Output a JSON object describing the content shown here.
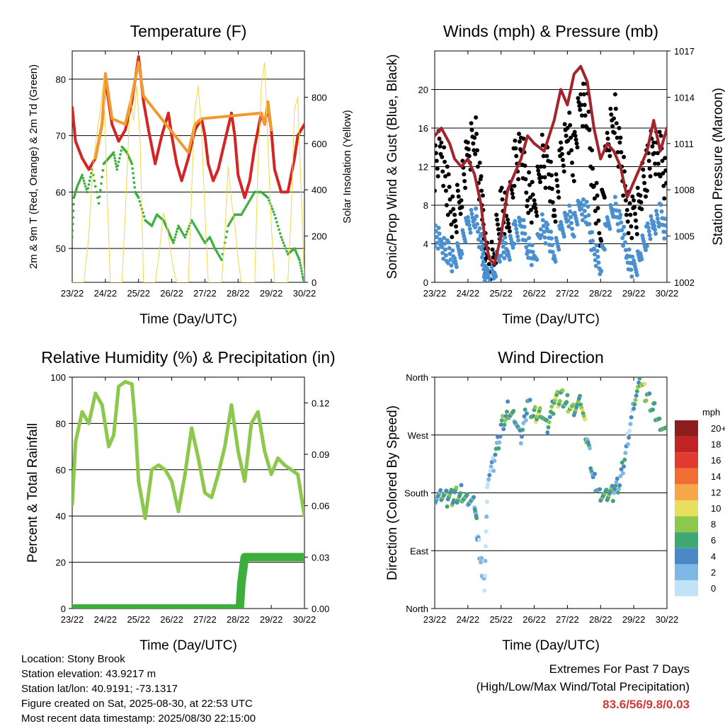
{
  "station": {
    "location": "Location: Stony Brook",
    "elevation": "Station elevation: 43.9217 m",
    "latlon": "Station lat/lon: 40.9191; -73.1317",
    "created": "Figure created on Sat, 2025-08-30, at 22:53 UTC",
    "recent": "Most recent data timestamp: 2025/08/30 22:15:00"
  },
  "extremes": {
    "heading": "Extremes For Past 7 Days",
    "subheading": "(High/Low/Max Wind/Total Precipitation)",
    "values": "83.6/56/9.8/0.03",
    "color": "#d23a3a"
  },
  "chart_data": [
    {
      "type": "line",
      "title": "Temperature (F)",
      "xlabel": "Time (Day/UTC)",
      "ylabel": "2m & 9m T (Red, Orange) & 2m Td (Green)",
      "y2label": "Solar Insolation (Yellow)",
      "x_ticks": [
        "23/22",
        "24/22",
        "25/22",
        "26/22",
        "27/22",
        "28/22",
        "29/22",
        "30/22"
      ],
      "xlim": [
        0,
        7
      ],
      "ylim": [
        44,
        85
      ],
      "y_ticks": [
        50,
        60,
        70,
        80
      ],
      "y2lim": [
        0,
        1000
      ],
      "y2_ticks": [
        0,
        200,
        400,
        600,
        800
      ],
      "grid": "horizontal",
      "series": [
        {
          "color": "#d42424",
          "style": "line",
          "axis": "left",
          "x": [
            0,
            0.1,
            0.3,
            0.5,
            0.7,
            0.9,
            1.0,
            1.2,
            1.4,
            1.6,
            1.8,
            2.0,
            2.15,
            2.3,
            2.5,
            2.7,
            2.9,
            3.0,
            3.15,
            3.3,
            3.5,
            3.7,
            3.9,
            4.0,
            4.1,
            4.25,
            4.4,
            4.6,
            4.8,
            4.9,
            5.0,
            5.2,
            5.35,
            5.5,
            5.7,
            5.8,
            5.9,
            6.0,
            6.1,
            6.3,
            6.5,
            6.7,
            6.8,
            7.0
          ],
          "y": [
            75,
            69,
            66,
            64,
            66,
            72,
            80,
            72,
            69,
            71,
            76,
            84,
            76,
            71,
            65,
            70,
            74,
            70,
            65,
            62,
            66,
            71,
            73,
            70,
            65,
            62,
            64,
            69,
            74,
            70,
            63,
            59,
            62,
            68,
            74,
            72,
            75,
            71,
            64,
            60,
            60,
            66,
            70,
            72
          ]
        },
        {
          "color": "#f29a30",
          "style": "line",
          "axis": "left",
          "x": [
            0.7,
            0.9,
            1.0,
            1.2,
            1.6,
            1.8,
            2.0,
            2.15,
            3.5,
            3.7,
            3.9,
            5.7,
            5.8,
            5.9,
            6.0
          ],
          "y": [
            66,
            72,
            81,
            73,
            72,
            77,
            83,
            77,
            67,
            72,
            73,
            74,
            72,
            76,
            71
          ]
        },
        {
          "color": "#3cae3c",
          "style": "dots",
          "axis": "left",
          "x": [
            0,
            0.05,
            0.15,
            0.3,
            0.45,
            0.6,
            0.8,
            0.95,
            1.1,
            1.25,
            1.35,
            1.5,
            1.65,
            1.8,
            1.9,
            2.0,
            2.2,
            2.4,
            2.55,
            2.75,
            2.9,
            3.05,
            3.2,
            3.4,
            3.6,
            3.8,
            4.0,
            4.15,
            4.3,
            4.5,
            4.7,
            4.9,
            5.1,
            5.3,
            5.5,
            5.7,
            5.9,
            6.1,
            6.3,
            6.5,
            6.7,
            6.85,
            6.95,
            7.0
          ],
          "y": [
            52,
            59,
            61,
            63,
            60,
            64,
            58,
            65,
            66,
            67,
            64,
            68,
            67,
            65,
            60,
            59,
            55,
            54,
            56,
            55,
            53,
            51,
            54,
            52,
            55,
            53,
            51,
            52,
            50,
            48,
            54,
            56,
            56,
            58,
            60,
            60,
            59,
            56,
            52,
            49,
            50,
            48,
            45,
            44
          ]
        },
        {
          "color": "#f2d746",
          "style": "line",
          "axis": "right",
          "x": [
            0,
            0.35,
            0.5,
            0.62,
            0.75,
            0.85,
            0.95,
            1.05,
            1.15,
            1.5,
            1.6,
            1.75,
            1.85,
            1.95,
            2.05,
            2.15,
            2.5,
            2.6,
            2.75,
            2.85,
            2.95,
            3.05,
            3.15,
            3.5,
            3.6,
            3.7,
            3.8,
            3.9,
            4.0,
            4.1,
            4.5,
            4.6,
            4.7,
            4.8,
            4.9,
            5.0,
            5.1,
            5.5,
            5.6,
            5.7,
            5.8,
            5.9,
            6.0,
            6.1,
            6.5,
            6.6,
            6.7,
            6.8,
            6.9,
            7.0
          ],
          "y": [
            0,
            0,
            200,
            500,
            650,
            750,
            880,
            400,
            0,
            0,
            300,
            800,
            700,
            850,
            600,
            0,
            0,
            100,
            300,
            250,
            150,
            60,
            0,
            0,
            400,
            750,
            850,
            650,
            300,
            0,
            0,
            200,
            500,
            350,
            250,
            100,
            0,
            0,
            500,
            850,
            950,
            600,
            250,
            0,
            0,
            300,
            750,
            800,
            400,
            0
          ]
        }
      ]
    },
    {
      "type": "scatter",
      "title": "Winds (mph) & Pressure (mb)",
      "xlabel": "Time (Day/UTC)",
      "ylabel": "Sonic/Prop Wind & Gust (Blue, Black)",
      "y2label": "Station Pressure (Maroon)",
      "x_ticks": [
        "23/22",
        "24/22",
        "25/22",
        "26/22",
        "27/22",
        "28/22",
        "29/22",
        "30/22"
      ],
      "xlim": [
        0,
        7
      ],
      "ylim": [
        0,
        24
      ],
      "y_ticks": [
        0,
        4,
        8,
        12,
        16,
        20
      ],
      "y2lim": [
        1002,
        1017
      ],
      "y2_ticks": [
        1002,
        1005,
        1008,
        1011,
        1014,
        1017
      ],
      "grid": "horizontal",
      "series": [
        {
          "color": "#000000",
          "style": "dots",
          "axis": "left",
          "x": [
            0,
            0.2,
            0.4,
            0.6,
            0.8,
            1.0,
            1.2,
            1.4,
            1.5,
            1.6,
            1.8,
            2.0,
            2.2,
            2.4,
            2.6,
            2.8,
            3.0,
            3.2,
            3.4,
            3.6,
            3.8,
            4.0,
            4.2,
            4.4,
            4.6,
            4.8,
            5.0,
            5.2,
            5.4,
            5.6,
            5.8,
            6.0,
            6.2,
            6.4,
            6.6,
            6.8,
            7.0
          ],
          "y": [
            12,
            14,
            9,
            6,
            10,
            13,
            16,
            9,
            4,
            1,
            3,
            8,
            6,
            12,
            14,
            10,
            7,
            13,
            12,
            8,
            12,
            16,
            13,
            19,
            18,
            9,
            6,
            14,
            18,
            13,
            8,
            6,
            9,
            12,
            14,
            13,
            10
          ]
        },
        {
          "color": "#4a90d0",
          "style": "dots",
          "axis": "left",
          "x": [
            0,
            0.2,
            0.4,
            0.6,
            0.8,
            1.0,
            1.2,
            1.4,
            1.5,
            1.6,
            1.8,
            2.0,
            2.2,
            2.4,
            2.6,
            2.8,
            3.0,
            3.2,
            3.4,
            3.6,
            3.8,
            4.0,
            4.2,
            4.4,
            4.6,
            4.8,
            5.0,
            5.2,
            5.4,
            5.6,
            5.8,
            6.0,
            6.2,
            6.4,
            6.6,
            6.8,
            7.0
          ],
          "y": [
            5,
            4,
            3,
            2,
            4,
            6,
            7,
            4,
            1,
            0,
            1,
            4,
            3,
            5,
            6,
            4,
            2,
            6,
            5,
            3,
            5,
            7,
            6,
            8,
            7,
            3,
            2,
            6,
            8,
            6,
            3,
            1,
            3,
            5,
            6,
            7,
            5
          ]
        },
        {
          "color": "#a3242c",
          "style": "line",
          "axis": "right",
          "x": [
            0,
            0.2,
            0.45,
            0.6,
            0.8,
            1.0,
            1.2,
            1.4,
            1.5,
            1.65,
            1.8,
            2.0,
            2.2,
            2.4,
            2.6,
            2.8,
            3.0,
            3.3,
            3.6,
            3.8,
            3.9,
            4.0,
            4.2,
            4.4,
            4.6,
            4.8,
            5.0,
            5.2,
            5.4,
            5.6,
            5.8,
            6.0,
            6.2,
            6.4,
            6.6,
            6.8,
            7.0
          ],
          "y": [
            1011.5,
            1012,
            1011,
            1010,
            1009.5,
            1010,
            1009,
            1007,
            1005,
            1003.5,
            1003.2,
            1005,
            1008,
            1009,
            1010,
            1011.5,
            1011,
            1010.5,
            1012.5,
            1014.5,
            1014,
            1013.5,
            1015.5,
            1016,
            1015,
            1012,
            1010,
            1011,
            1010.5,
            1009.5,
            1007.5,
            1008.5,
            1009.5,
            1010.5,
            1012.5,
            1010.5,
            1012
          ]
        }
      ]
    },
    {
      "type": "line",
      "title": "Relative Humidity (%) & Precipitation (in)",
      "xlabel": "Time (Day/UTC)",
      "ylabel": "Percent & Total Rainfall",
      "x_ticks": [
        "23/22",
        "24/22",
        "25/22",
        "26/22",
        "27/22",
        "28/22",
        "29/22",
        "30/22"
      ],
      "xlim": [
        0,
        7
      ],
      "ylim": [
        0,
        100
      ],
      "y_ticks": [
        0,
        20,
        40,
        60,
        80,
        100
      ],
      "y2lim": [
        0,
        0.135
      ],
      "y2_ticks": [
        "0.00",
        "0.03",
        "0.06",
        "0.09",
        "0.12"
      ],
      "grid": "horizontal",
      "series": [
        {
          "color": "#8cc84b",
          "style": "line",
          "axis": "left",
          "x": [
            0,
            0.1,
            0.3,
            0.5,
            0.7,
            0.9,
            1.1,
            1.25,
            1.4,
            1.6,
            1.8,
            1.9,
            2.0,
            2.2,
            2.4,
            2.6,
            2.8,
            3.0,
            3.2,
            3.4,
            3.6,
            3.8,
            4.0,
            4.2,
            4.4,
            4.6,
            4.8,
            5.0,
            5.2,
            5.4,
            5.6,
            5.8,
            6.0,
            6.2,
            6.4,
            6.6,
            6.8,
            7.0
          ],
          "y": [
            45,
            72,
            85,
            80,
            93,
            88,
            70,
            75,
            96,
            98,
            97,
            80,
            55,
            39,
            60,
            62,
            60,
            55,
            42,
            58,
            78,
            65,
            50,
            48,
            58,
            70,
            88,
            68,
            55,
            80,
            85,
            68,
            58,
            65,
            62,
            60,
            58,
            40
          ]
        },
        {
          "color": "#3cae3c",
          "style": "thick",
          "axis": "right",
          "x": [
            0,
            1,
            2,
            3,
            4,
            5,
            5.05,
            5.1,
            5.2,
            6,
            7
          ],
          "y": [
            0,
            0,
            0,
            0,
            0,
            0,
            0,
            0.015,
            0.03,
            0.03,
            0.03
          ]
        }
      ]
    },
    {
      "type": "scatter",
      "title": "Wind Direction",
      "xlabel": "Time (Day/UTC)",
      "ylabel": "Direction (Colored By Speed)",
      "x_ticks": [
        "23/22",
        "24/22",
        "25/22",
        "26/22",
        "27/22",
        "28/22",
        "29/22",
        "30/22"
      ],
      "xlim": [
        0,
        7
      ],
      "ylim": [
        0,
        360
      ],
      "y_ticks": [
        "North",
        "East",
        "South",
        "West",
        "North"
      ],
      "grid": "horizontal",
      "legend": {
        "title": "mph",
        "placement": "right",
        "labels": [
          "20+",
          "18",
          "16",
          "14",
          "12",
          "10",
          "8",
          "6",
          "4",
          "2",
          "0"
        ],
        "colors": [
          "#8e1d1d",
          "#bf2326",
          "#e03a31",
          "#f26d33",
          "#f7a64a",
          "#e8df5c",
          "#8cc84b",
          "#3fa772",
          "#4a88c6",
          "#7fb7e6",
          "#bfe3f7"
        ]
      },
      "series": [
        {
          "x": [
            0,
            0.2,
            0.4,
            0.6,
            0.8,
            1.0,
            1.2,
            1.3,
            1.4,
            1.5,
            1.6,
            1.8,
            2.0,
            2.2,
            2.4,
            2.6,
            2.8,
            3.0,
            3.2,
            3.4,
            3.6,
            3.8,
            4.0,
            4.2,
            4.4,
            4.6,
            4.8,
            5.0,
            5.2,
            5.4,
            5.6,
            5.8,
            6.0,
            6.2,
            6.4,
            6.6,
            6.8,
            7.0
          ],
          "y": [
            175,
            175,
            170,
            175,
            180,
            170,
            160,
            110,
            70,
            40,
            200,
            230,
            280,
            310,
            300,
            260,
            320,
            300,
            310,
            280,
            320,
            330,
            320,
            310,
            320,
            260,
            200,
            180,
            175,
            180,
            200,
            260,
            320,
            350,
            330,
            310,
            290,
            270
          ],
          "speed": [
            4,
            5,
            6,
            6,
            5,
            4,
            3,
            2,
            1,
            0,
            2,
            4,
            6,
            5,
            4,
            3,
            6,
            7,
            5,
            6,
            7,
            6,
            7,
            6,
            7,
            4,
            3,
            5,
            6,
            4,
            3,
            2,
            5,
            7,
            6,
            6,
            5,
            4
          ]
        }
      ]
    }
  ]
}
